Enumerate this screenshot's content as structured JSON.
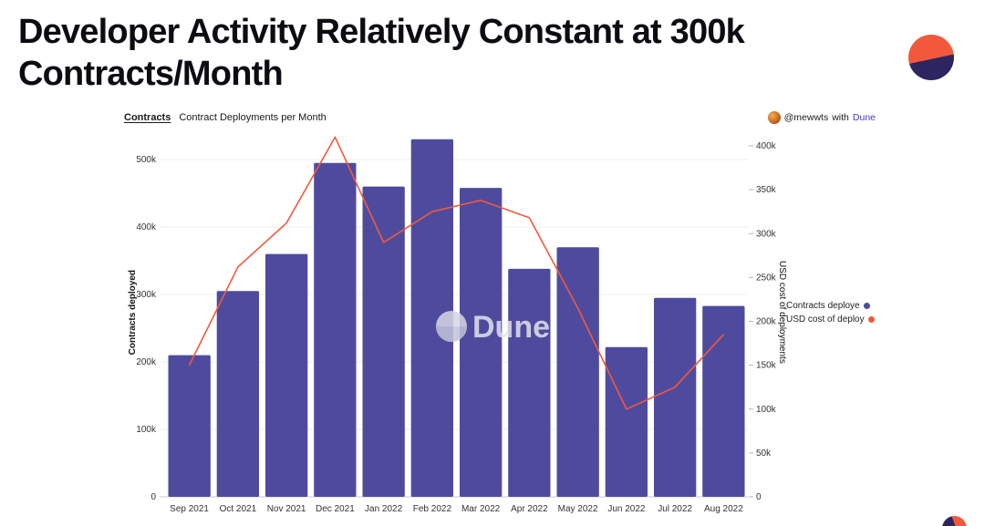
{
  "header": {
    "title_line1": "Developer Activity Relatively Constant at 300k",
    "title_line2": "Contracts/Month"
  },
  "chart_header": {
    "tab": "Contracts",
    "title": "Contract Deployments per Month",
    "author": {
      "handle": "@mewwts",
      "with_text": "with",
      "brand": "Dune"
    }
  },
  "watermark": {
    "text": "Dune"
  },
  "legend": {
    "items": [
      {
        "label": "Contracts deploye"
      },
      {
        "label": "USD cost of deploy"
      }
    ]
  },
  "colors": {
    "bar": "#4e4b9e",
    "line": "#f4593b",
    "brand_text": "#4338ca",
    "logo_orange": "#f2593a",
    "logo_navy": "#2d2560",
    "gridline": "#ededed",
    "watermark_gray": "#e3e3ec"
  },
  "chart_data": {
    "type": "bar",
    "title": "Contract Deployments per Month",
    "categories": [
      "Sep 2021",
      "Oct 2021",
      "Nov 2021",
      "Dec 2021",
      "Jan 2022",
      "Feb 2022",
      "Mar 2022",
      "Apr 2022",
      "May 2022",
      "Jun 2022",
      "Jul 2022",
      "Aug 2022"
    ],
    "series": [
      {
        "name": "Contracts deployed",
        "type": "bar",
        "axis": "left",
        "color": "#4e4b9e",
        "values": [
          210000,
          305000,
          360000,
          495000,
          460000,
          530000,
          458000,
          338000,
          370000,
          222000,
          295000,
          283000
        ]
      },
      {
        "name": "USD cost of deployments",
        "type": "line",
        "axis": "right",
        "color": "#f4593b",
        "values": [
          150000,
          262000,
          312000,
          410000,
          290000,
          325000,
          338000,
          318000,
          215000,
          100000,
          125000,
          185000
        ]
      }
    ],
    "left_axis": {
      "label": "Contracts deployed",
      "max": 500000,
      "ticks": [
        "0",
        "100k",
        "200k",
        "300k",
        "400k",
        "500k"
      ],
      "tick_values": [
        0,
        100000,
        200000,
        300000,
        400000,
        500000
      ]
    },
    "right_axis": {
      "label": "USD cost of deployments",
      "max": 400000,
      "ticks": [
        "0",
        "50k",
        "100k",
        "150k",
        "200k",
        "250k",
        "300k",
        "350k",
        "400k"
      ],
      "tick_values": [
        0,
        50000,
        100000,
        150000,
        200000,
        250000,
        300000,
        350000,
        400000
      ]
    },
    "grid": true,
    "legend_position": "right"
  }
}
